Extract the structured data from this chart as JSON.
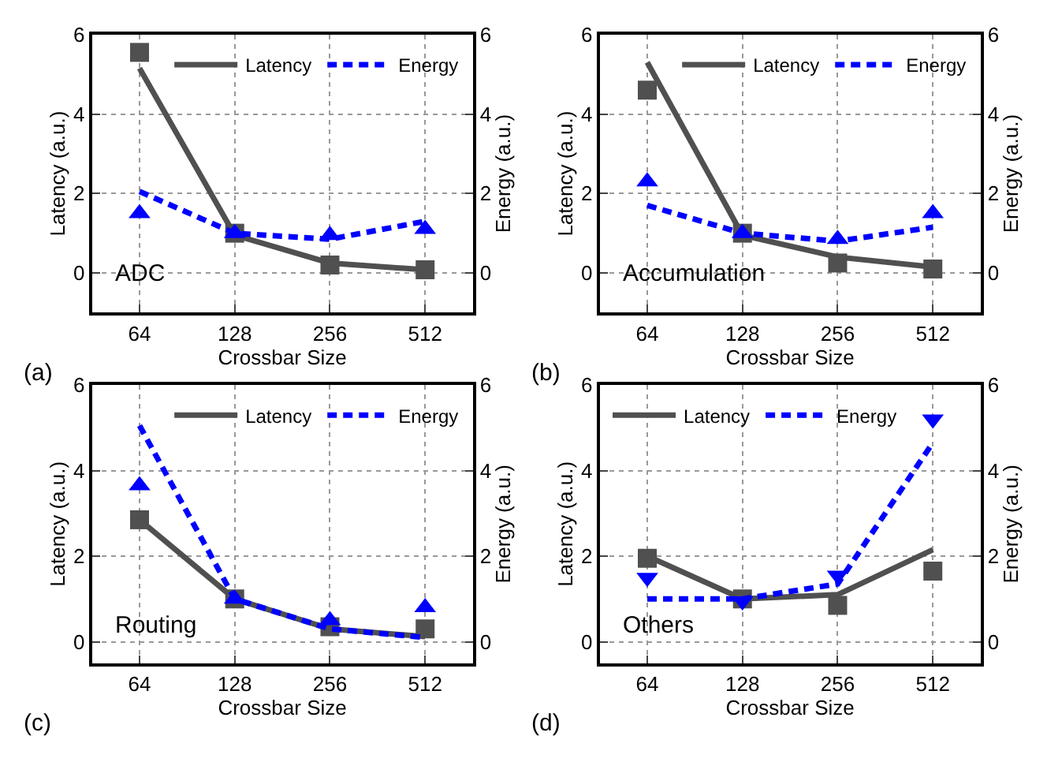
{
  "chart_data": [
    {
      "type": "line",
      "categories": [
        "64",
        "128",
        "256",
        "512"
      ],
      "xlabel": "Crossbar Size",
      "ylabel": "Latency (a.u.)",
      "y2label": "Energy (a.u.)",
      "ylim": [
        -1,
        6
      ],
      "yticks": [
        0,
        2,
        4,
        6
      ],
      "y2lim": [
        -1,
        6
      ],
      "y2ticks": [
        0,
        2,
        4,
        6
      ],
      "grid": true,
      "legend": "top right",
      "annotations": [
        "ADC",
        "(a)"
      ],
      "series": [
        {
          "name": "Latency",
          "color": "#505050",
          "line_style": "solid",
          "values": [
            5.15,
            0.95,
            0.25,
            0.08
          ]
        },
        {
          "name": "Energy",
          "axis": "y2",
          "color": "#0000ff",
          "line_style": "dashed",
          "values": [
            2.05,
            1.0,
            0.85,
            1.3
          ]
        },
        {
          "type": "scatter",
          "color": "#505050",
          "marker": "square",
          "values": [
            5.55,
            1.0,
            0.2,
            0.08
          ]
        },
        {
          "type": "scatter",
          "axis": "y2",
          "color": "#0000ff",
          "marker": "triangle",
          "values": [
            1.5,
            1.0,
            0.95,
            1.1
          ]
        }
      ]
    },
    {
      "type": "line",
      "categories": [
        "64",
        "128",
        "256",
        "512"
      ],
      "xlabel": "Crossbar Size",
      "ylabel": "Latency (a.u.)",
      "y2label": "Energy (a.u.)",
      "ylim": [
        -1,
        6
      ],
      "yticks": [
        0,
        2,
        4,
        6
      ],
      "y2lim": [
        -1,
        6
      ],
      "y2ticks": [
        0,
        2,
        4,
        6
      ],
      "grid": true,
      "legend": "top right",
      "annotations": [
        "Accumulation",
        "(b)"
      ],
      "series": [
        {
          "name": "Latency",
          "color": "#505050",
          "line_style": "solid",
          "values": [
            5.3,
            0.95,
            0.4,
            0.15
          ]
        },
        {
          "name": "Energy",
          "axis": "y2",
          "color": "#0000ff",
          "line_style": "dashed",
          "values": [
            1.7,
            1.0,
            0.8,
            1.15
          ]
        },
        {
          "type": "scatter",
          "color": "#505050",
          "marker": "square",
          "values": [
            4.6,
            1.0,
            0.25,
            0.1
          ]
        },
        {
          "type": "scatter",
          "axis": "y2",
          "color": "#0000ff",
          "marker": "triangle",
          "values": [
            2.3,
            1.0,
            0.85,
            1.5
          ]
        }
      ]
    },
    {
      "type": "line",
      "categories": [
        "64",
        "128",
        "256",
        "512"
      ],
      "xlabel": "Crossbar Size",
      "ylabel": "Latency (a.u.)",
      "y2label": "Energy (a.u.)",
      "ylim": [
        -0.5,
        6
      ],
      "yticks": [
        0,
        2,
        4,
        6
      ],
      "y2lim": [
        -0.5,
        6
      ],
      "y2ticks": [
        0,
        2,
        4,
        6
      ],
      "grid": true,
      "legend": "top right",
      "annotations": [
        "Routing",
        "(c)"
      ],
      "series": [
        {
          "name": "Latency",
          "color": "#505050",
          "line_style": "solid",
          "values": [
            2.85,
            1.0,
            0.3,
            0.12
          ]
        },
        {
          "name": "Energy",
          "axis": "y2",
          "color": "#0000ff",
          "line_style": "dashed",
          "values": [
            5.05,
            1.0,
            0.3,
            0.1
          ]
        },
        {
          "type": "scatter",
          "color": "#505050",
          "marker": "square",
          "values": [
            2.85,
            1.0,
            0.35,
            0.3
          ]
        },
        {
          "type": "scatter",
          "axis": "y2",
          "color": "#0000ff",
          "marker": "triangle",
          "values": [
            3.65,
            1.0,
            0.5,
            0.8
          ]
        }
      ]
    },
    {
      "type": "line",
      "categories": [
        "64",
        "128",
        "256",
        "512"
      ],
      "xlabel": "Crossbar Size",
      "ylabel": "Latency (a.u.)",
      "y2label": "Energy (a.u.)",
      "ylim": [
        -0.5,
        6
      ],
      "yticks": [
        0,
        2,
        4,
        6
      ],
      "y2lim": [
        -0.5,
        6
      ],
      "y2ticks": [
        0,
        2,
        4,
        6
      ],
      "grid": true,
      "legend": "top left",
      "annotations": [
        "Others",
        "(d)"
      ],
      "series": [
        {
          "name": "Latency",
          "color": "#505050",
          "line_style": "solid",
          "values": [
            2.0,
            1.0,
            1.1,
            2.15
          ]
        },
        {
          "name": "Energy",
          "axis": "y2",
          "color": "#0000ff",
          "line_style": "dashed",
          "values": [
            1.0,
            1.0,
            1.35,
            4.65
          ]
        },
        {
          "type": "scatter",
          "color": "#505050",
          "marker": "square",
          "values": [
            1.95,
            1.0,
            0.85,
            1.65
          ]
        },
        {
          "type": "scatter",
          "axis": "y2",
          "color": "#0000ff",
          "marker": "triangle-down",
          "values": [
            1.5,
            0.95,
            1.55,
            5.2
          ]
        }
      ]
    }
  ]
}
